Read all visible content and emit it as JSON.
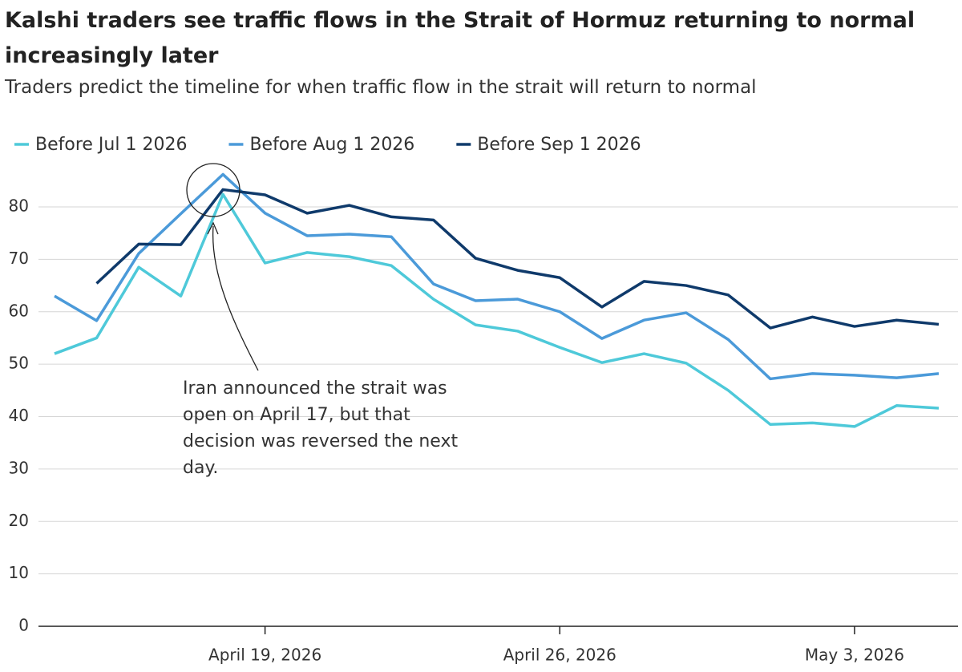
{
  "chart_data": {
    "type": "line",
    "title": "Kalshi traders see traffic flows in the Strait of Hormuz returning to normal increasingly later",
    "subtitle": "Traders predict the timeline for when traffic flow in the strait will return to normal",
    "annotation": "Iran announced the strait was open on April 17, but that decision was reversed the next day.",
    "x": [
      "2026-04-14",
      "2026-04-15",
      "2026-04-16",
      "2026-04-17",
      "2026-04-18",
      "2026-04-19",
      "2026-04-20",
      "2026-04-21",
      "2026-04-22",
      "2026-04-23",
      "2026-04-24",
      "2026-04-25",
      "2026-04-26",
      "2026-04-27",
      "2026-04-28",
      "2026-04-29",
      "2026-04-30",
      "2026-05-01",
      "2026-05-02",
      "2026-05-03",
      "2026-05-04",
      "2026-05-05"
    ],
    "series": [
      {
        "name": "Before Jul 1 2026",
        "color": "#4ec9d9",
        "values": [
          52.0,
          55.0,
          68.5,
          63.0,
          82.4,
          69.3,
          71.3,
          70.5,
          68.8,
          62.4,
          57.5,
          56.3,
          53.2,
          50.3,
          52.0,
          50.2,
          45.0,
          38.5,
          38.8,
          38.1,
          42.1,
          41.6
        ]
      },
      {
        "name": "Before Aug 1 2026",
        "color": "#4b9ad9",
        "values": [
          63.0,
          58.3,
          71.1,
          78.7,
          86.2,
          78.8,
          74.5,
          74.8,
          74.3,
          65.3,
          62.1,
          62.4,
          60.0,
          54.9,
          58.4,
          59.8,
          54.7,
          47.2,
          48.2,
          47.9,
          47.4,
          48.2
        ]
      },
      {
        "name": "Before Sep 1 2026",
        "color": "#0f3a6b",
        "values": [
          null,
          65.4,
          72.9,
          72.8,
          83.3,
          82.3,
          78.8,
          80.3,
          78.1,
          77.5,
          70.2,
          67.9,
          66.5,
          60.9,
          65.8,
          65.0,
          63.2,
          56.9,
          59.0,
          57.2,
          58.4,
          57.6
        ]
      }
    ],
    "xlim": [
      "2026-04-14",
      "2026-05-05"
    ],
    "xticks": [
      {
        "value": "2026-04-19",
        "label": "April 19, 2026"
      },
      {
        "value": "2026-04-26",
        "label": "April 26, 2026"
      },
      {
        "value": "2026-05-03",
        "label": "May 3, 2026"
      }
    ],
    "ylim": [
      0,
      80
    ],
    "yticks": [
      0,
      10,
      20,
      30,
      40,
      50,
      60,
      70,
      80
    ],
    "grid": true,
    "legend": "top"
  }
}
